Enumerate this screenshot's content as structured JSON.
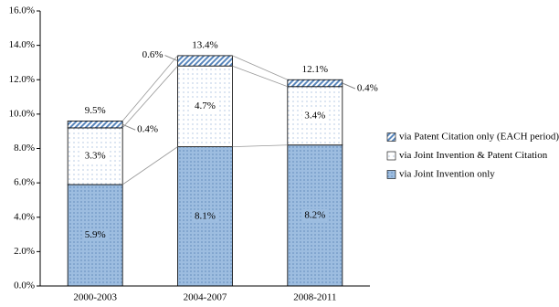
{
  "chart_data": {
    "type": "stacked-bar",
    "categories": [
      "2000-2003",
      "2004-2007",
      "2008-2011"
    ],
    "series": [
      {
        "name": "via Joint Invention only",
        "color": "#9dbde0",
        "values": [
          5.9,
          8.1,
          8.2
        ],
        "value_labels": [
          "5.9%",
          "8.1%",
          "8.2%"
        ]
      },
      {
        "name": "via Joint Invention & Patent Citation",
        "color": "#ffffff",
        "values": [
          3.3,
          4.7,
          3.4
        ],
        "value_labels": [
          "3.3%",
          "4.7%",
          "3.4%"
        ]
      },
      {
        "name": "via Patent Citation only (EACH period)",
        "color": "#7fa7d1",
        "values": [
          0.4,
          0.6,
          0.4
        ],
        "value_labels": [
          "0.4%",
          "0.6%",
          "0.4%"
        ]
      }
    ],
    "totals": {
      "values": [
        9.5,
        13.4,
        12.1
      ],
      "value_labels": [
        "9.5%",
        "13.4%",
        "12.1%"
      ]
    },
    "ylim": [
      0,
      16
    ],
    "yticks": [
      {
        "value": 0,
        "label": "0.0%"
      },
      {
        "value": 2,
        "label": "2.0%"
      },
      {
        "value": 4,
        "label": "4.0%"
      },
      {
        "value": 6,
        "label": "6.0%"
      },
      {
        "value": 8,
        "label": "8.0%"
      },
      {
        "value": 10,
        "label": "10.0%"
      },
      {
        "value": 12,
        "label": "12.0%"
      },
      {
        "value": 14,
        "label": "14.0%"
      },
      {
        "value": 16,
        "label": "16.0%"
      }
    ]
  }
}
